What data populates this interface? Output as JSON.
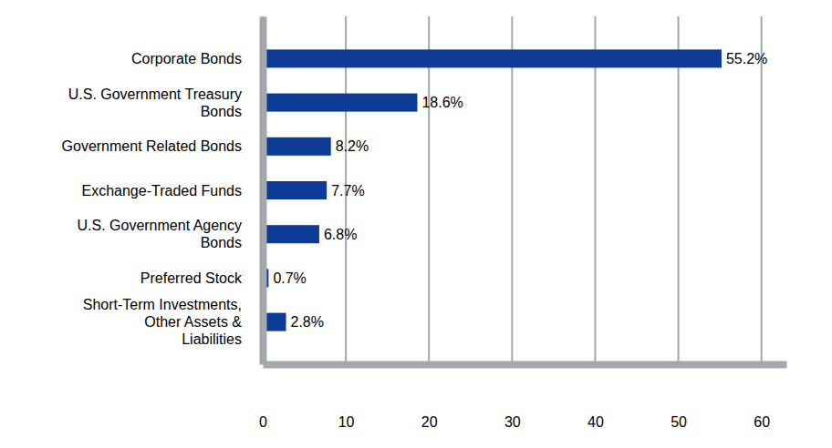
{
  "chart_data": {
    "type": "bar",
    "orientation": "horizontal",
    "categories": [
      "Corporate Bonds",
      "U.S. Government Treasury\nBonds",
      "Government Related Bonds",
      "Exchange-Traded Funds",
      "U.S. Government Agency\nBonds",
      "Preferred Stock",
      "Short-Term Investments,\nOther Assets &\nLiabilities"
    ],
    "values": [
      55.2,
      18.6,
      8.2,
      7.7,
      6.8,
      0.7,
      2.8
    ],
    "value_labels": [
      "55.2%",
      "18.6%",
      "8.2%",
      "7.7%",
      "6.8%",
      "0.7%",
      "2.8%"
    ],
    "color": "#0c3a94",
    "xlim": [
      0,
      63
    ],
    "xticks": [
      0,
      10,
      20,
      30,
      40,
      50,
      60
    ],
    "grid": true,
    "data_labels": true
  }
}
